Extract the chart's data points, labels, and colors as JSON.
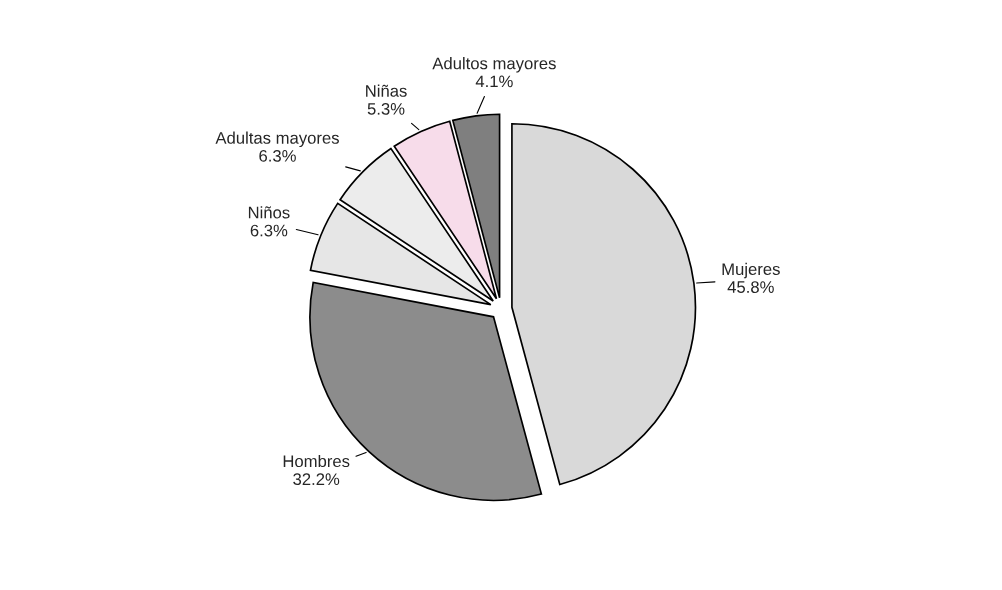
{
  "chart_data": {
    "type": "pie",
    "categories": [
      "Mujeres",
      "Hombres",
      "Niños",
      "Adultas mayores",
      "Niñas",
      "Adultos mayores"
    ],
    "values": [
      45.8,
      32.2,
      6.3,
      6.3,
      5.3,
      4.1
    ],
    "colors": [
      "#d9d9d9",
      "#8c8c8c",
      "#e6e6e6",
      "#ececec",
      "#f7dcea",
      "#7f7f7f"
    ],
    "value_labels": [
      "45.8%",
      "32.2%",
      "6.3%",
      "6.3%",
      "5.3%",
      "4.1%"
    ]
  }
}
